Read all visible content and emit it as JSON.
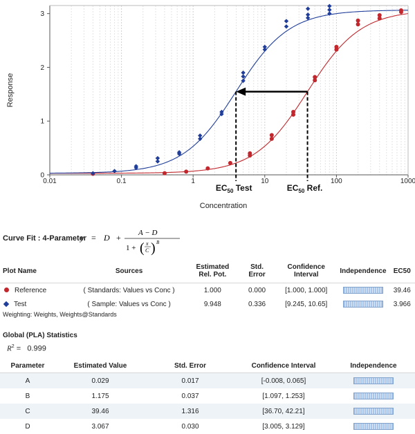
{
  "chart_data": {
    "type": "scatter",
    "xlabel": "Concentration",
    "ylabel": "Response",
    "xscale": "log",
    "xlim": [
      0.01,
      1000
    ],
    "ylim": [
      0,
      3.15
    ],
    "x_ticks": [
      "0.01",
      "0.1",
      "1",
      "10",
      "100",
      "1000"
    ],
    "y_ticks": [
      "0",
      "1",
      "2",
      "3"
    ],
    "grid": true,
    "series": [
      {
        "name": "Reference",
        "color": "#c1272d",
        "marker": "circle",
        "fit": {
          "A": 0.029,
          "B": 1.175,
          "C": 39.46,
          "D": 3.067
        },
        "points": [
          [
            0.04,
            0.02
          ],
          [
            0.4,
            0.03
          ],
          [
            0.8,
            0.06
          ],
          [
            1.6,
            0.12
          ],
          [
            3.3,
            0.22
          ],
          [
            6.2,
            0.36
          ],
          [
            6.2,
            0.4
          ],
          [
            12.5,
            0.67
          ],
          [
            12.5,
            0.74
          ],
          [
            25,
            1.12
          ],
          [
            25,
            1.17
          ],
          [
            50,
            1.76
          ],
          [
            50,
            1.82
          ],
          [
            100,
            2.33
          ],
          [
            100,
            2.38
          ],
          [
            200,
            2.8
          ],
          [
            200,
            2.87
          ],
          [
            400,
            2.91
          ],
          [
            400,
            2.97
          ],
          [
            800,
            3.03
          ],
          [
            800,
            3.06
          ]
        ]
      },
      {
        "name": "Test",
        "color": "#1f3d99",
        "marker": "diamond",
        "fit": {
          "A": 0.029,
          "B": 1.175,
          "C": 3.966,
          "D": 3.067
        },
        "points": [
          [
            0.04,
            0.03
          ],
          [
            0.08,
            0.07
          ],
          [
            0.16,
            0.13
          ],
          [
            0.16,
            0.16
          ],
          [
            0.32,
            0.25
          ],
          [
            0.32,
            0.31
          ],
          [
            0.64,
            0.39
          ],
          [
            0.64,
            0.42
          ],
          [
            1.25,
            0.67
          ],
          [
            1.25,
            0.73
          ],
          [
            2.5,
            1.13
          ],
          [
            2.5,
            1.17
          ],
          [
            5,
            1.75
          ],
          [
            5,
            1.83
          ],
          [
            5,
            1.9
          ],
          [
            10,
            2.33
          ],
          [
            10,
            2.38
          ],
          [
            20,
            2.76
          ],
          [
            20,
            2.86
          ],
          [
            40,
            2.92
          ],
          [
            40,
            2.98
          ],
          [
            40,
            3.09
          ],
          [
            80,
            3.0
          ],
          [
            80,
            3.07
          ],
          [
            80,
            3.14
          ]
        ]
      }
    ],
    "annotations": {
      "ec50_test": {
        "x": 3.966,
        "label": "EC",
        "sub": "50",
        "suffix": "Test"
      },
      "ec50_ref": {
        "x": 39.46,
        "label": "EC",
        "sub": "50",
        "suffix": "Ref."
      },
      "arrow_y": 1.548
    }
  },
  "curve_fit": {
    "label": "Curve Fit : 4-Parameter",
    "eq_y": "y",
    "eq_eq": "=",
    "eq_d": "D",
    "eq_plus": "+",
    "eq_num": "A − D",
    "eq_den": "1 + ",
    "eq_x": "x",
    "eq_c": "C",
    "eq_b": "B"
  },
  "table1": {
    "headers": [
      "Plot Name",
      "Sources",
      "Estimated Rel. Pot.",
      "Std. Error",
      "Confidence Interval",
      "Independence",
      "EC50"
    ],
    "rows": [
      {
        "name": "Reference",
        "source": "( Standards: Values vs Conc )",
        "rel_pot": "1.000",
        "std_err": "0.000",
        "ci": "[1.000, 1.000]",
        "ec50": "39.46"
      },
      {
        "name": "Test",
        "source": "( Sample: Values vs Conc )",
        "rel_pot": "9.948",
        "std_err": "0.336",
        "ci": "[9.245, 10.65]",
        "ec50": "3.966"
      }
    ]
  },
  "weighting": "Weighting: Weights, Weights@Standards",
  "global": {
    "title": "Global (PLA) Statistics",
    "r2_sym": "R",
    "r2_sup": "2",
    "r2_eq": "=",
    "r2_value": "0.999"
  },
  "table2": {
    "headers": [
      "Parameter",
      "Estimated Value",
      "Std. Error",
      "Confidence Interval",
      "Independence"
    ],
    "rows": [
      {
        "param": "A",
        "value": "0.029",
        "std_err": "0.017",
        "ci": "[-0.008, 0.065]"
      },
      {
        "param": "B",
        "value": "1.175",
        "std_err": "0.037",
        "ci": "[1.097, 1.253]"
      },
      {
        "param": "C",
        "value": "39.46",
        "std_err": "1.316",
        "ci": "[36.70, 42.21]"
      },
      {
        "param": "D",
        "value": "3.067",
        "std_err": "0.030",
        "ci": "[3.005, 3.129]"
      }
    ]
  }
}
